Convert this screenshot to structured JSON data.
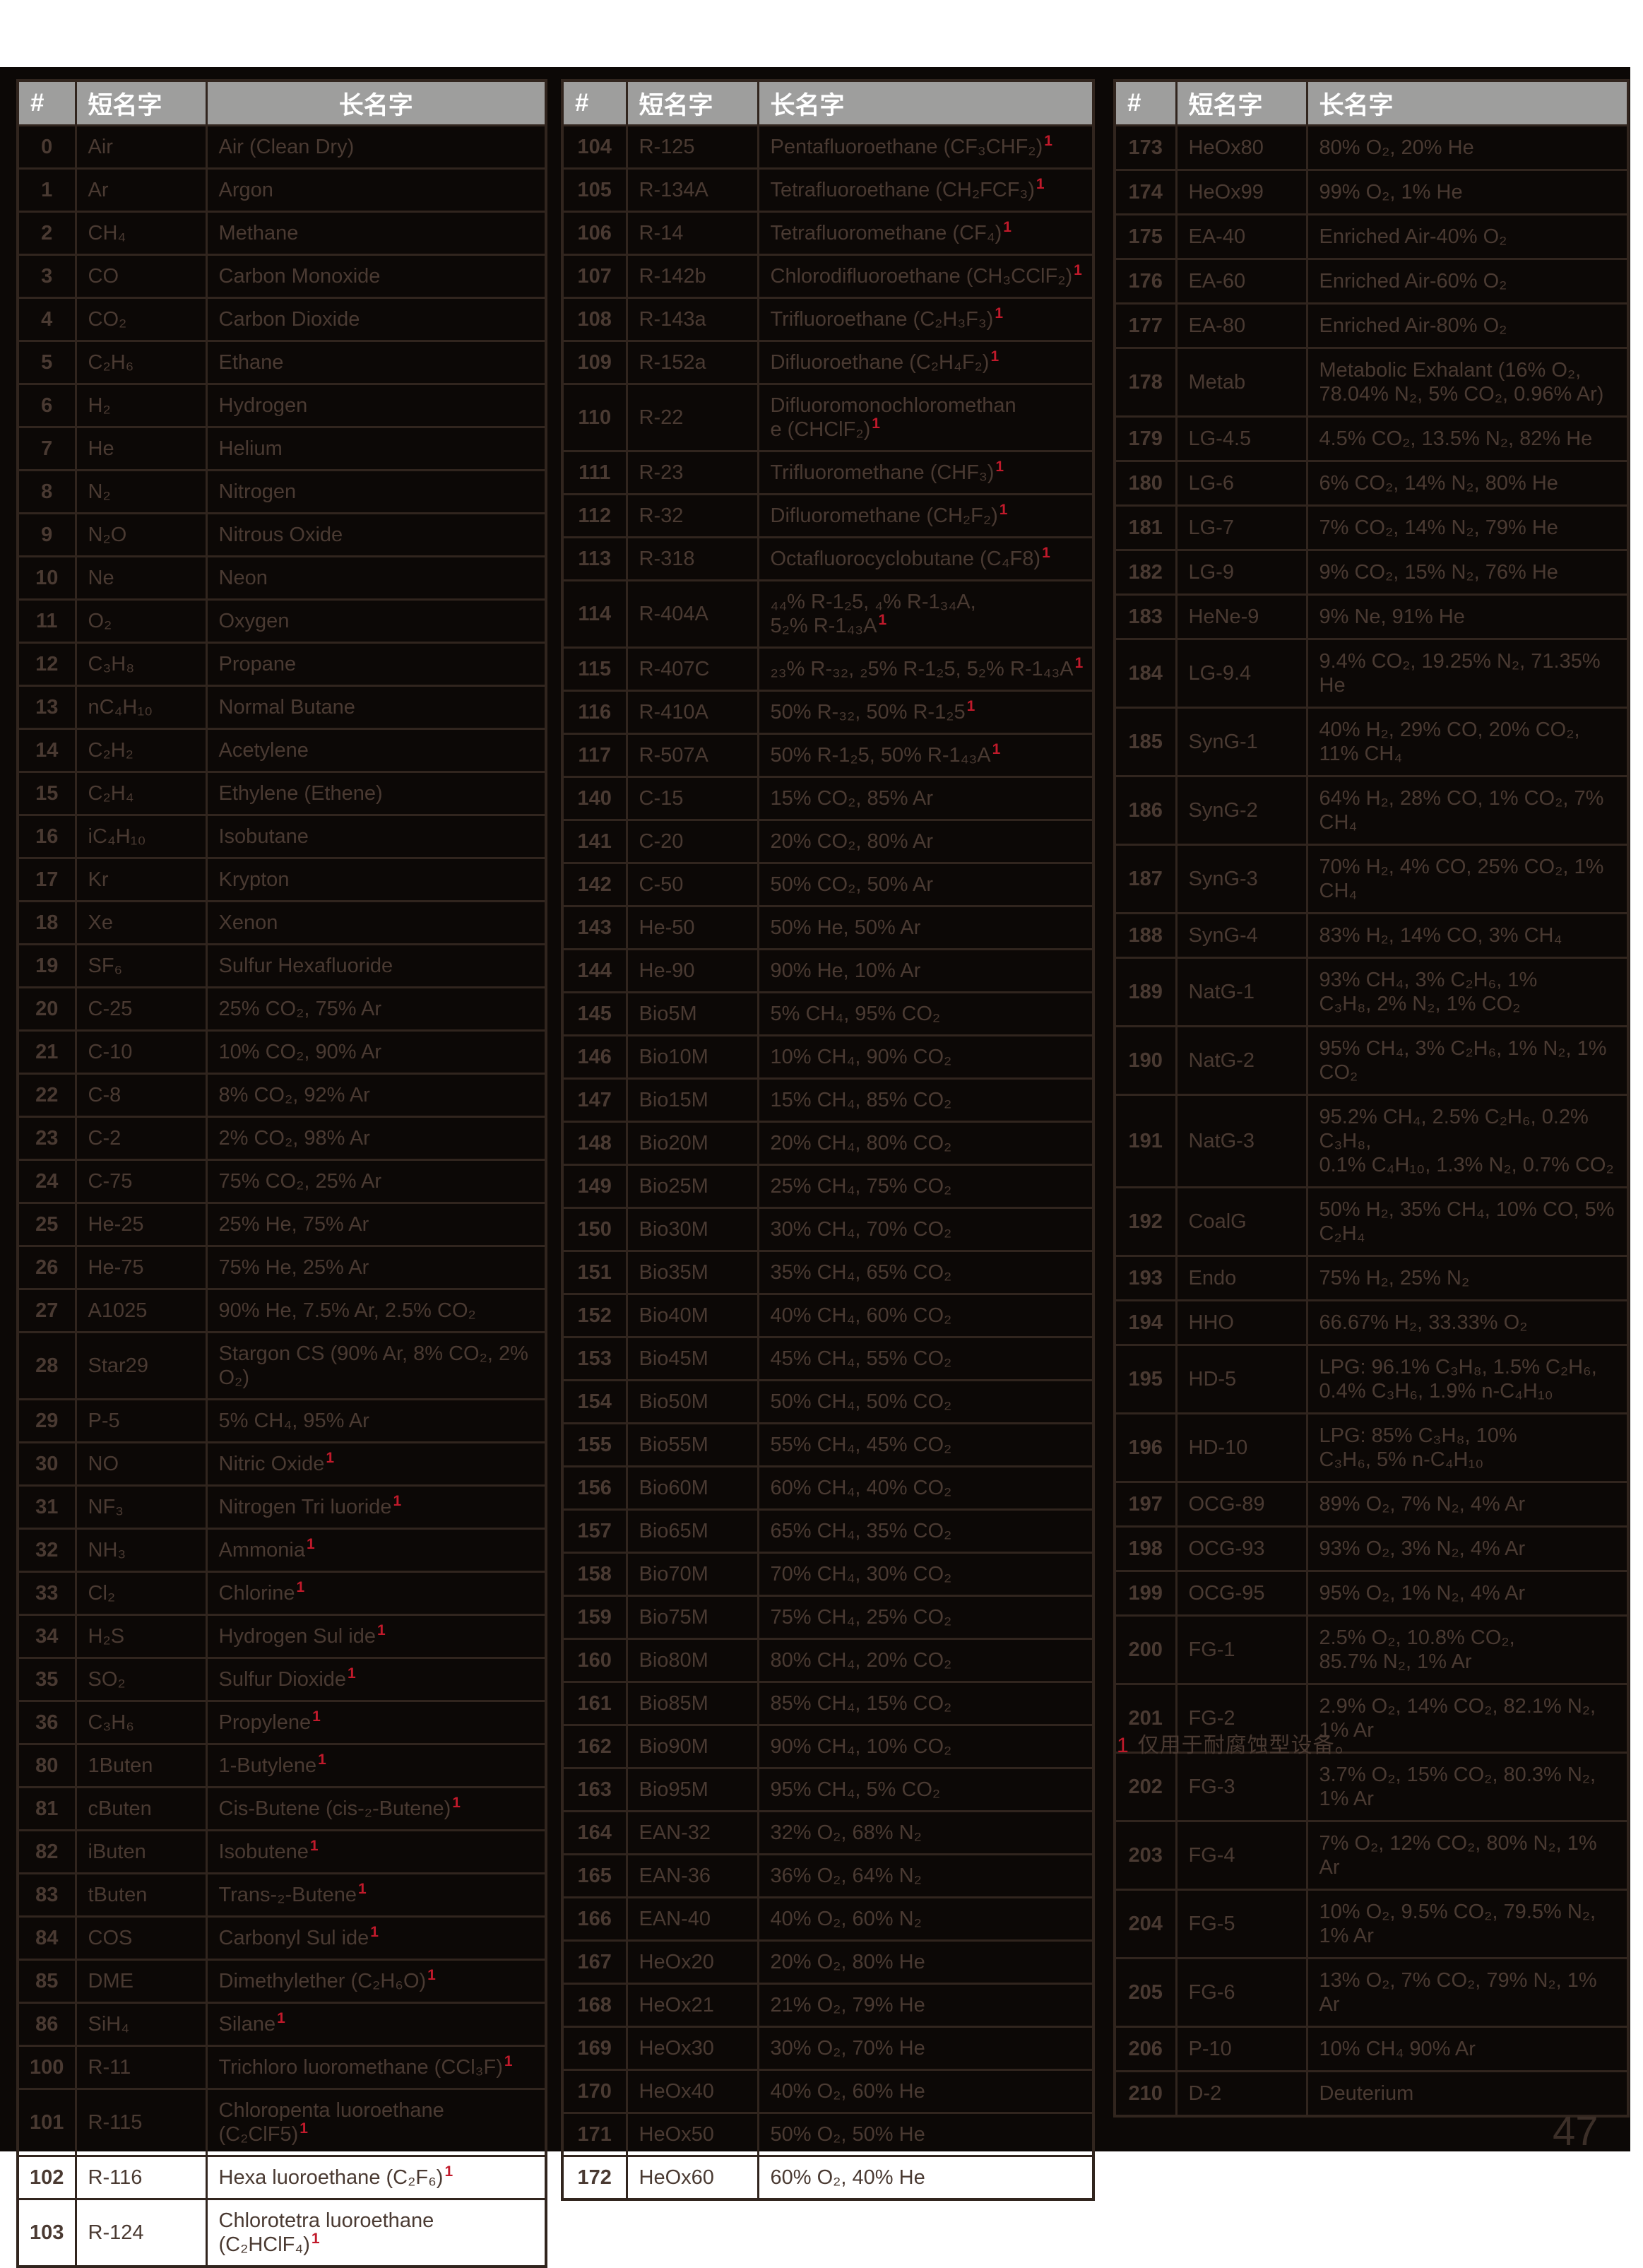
{
  "columns": {
    "num": "#",
    "short": "短名字",
    "long": "长名字"
  },
  "footnote": {
    "marker": "1",
    "text": "仅用于耐腐蚀型设备。"
  },
  "page": {
    "number": "47"
  },
  "colors": {
    "sheet_background": "#0C0806",
    "header_background": "#9E9E9D",
    "header_text": "#FFFFFF",
    "body_text": "#4A3A32",
    "table_border": "#31251E",
    "footnote_red": "#C11A2B",
    "page_number": "#3C2F28"
  },
  "tables": [
    {
      "rows": [
        {
          "num": "0",
          "short": "Air",
          "long": "Air (Clean Dry)",
          "fn": false
        },
        {
          "num": "1",
          "short": "Ar",
          "long": "Argon",
          "fn": false
        },
        {
          "num": "2",
          "short": "CH₄",
          "long": "Methane",
          "fn": false
        },
        {
          "num": "3",
          "short": "CO",
          "long": "Carbon Monoxide",
          "fn": false
        },
        {
          "num": "4",
          "short": "CO₂",
          "long": "Carbon Dioxide",
          "fn": false
        },
        {
          "num": "5",
          "short": "C₂H₆",
          "long": "Ethane",
          "fn": false
        },
        {
          "num": "6",
          "short": "H₂",
          "long": "Hydrogen",
          "fn": false
        },
        {
          "num": "7",
          "short": "He",
          "long": "Helium",
          "fn": false
        },
        {
          "num": "8",
          "short": "N₂",
          "long": "Nitrogen",
          "fn": false
        },
        {
          "num": "9",
          "short": "N₂O",
          "long": "Nitrous Oxide",
          "fn": false
        },
        {
          "num": "10",
          "short": "Ne",
          "long": "Neon",
          "fn": false
        },
        {
          "num": "11",
          "short": "O₂",
          "long": "Oxygen",
          "fn": false
        },
        {
          "num": "12",
          "short": "C₃H₈",
          "long": "Propane",
          "fn": false
        },
        {
          "num": "13",
          "short": "nC₄H₁₀",
          "long": "Normal Butane",
          "fn": false
        },
        {
          "num": "14",
          "short": "C₂H₂",
          "long": "Acetylene",
          "fn": false
        },
        {
          "num": "15",
          "short": "C₂H₄",
          "long": "Ethylene (Ethene)",
          "fn": false
        },
        {
          "num": "16",
          "short": "iC₄H₁₀",
          "long": "Isobutane",
          "fn": false
        },
        {
          "num": "17",
          "short": "Kr",
          "long": "Krypton",
          "fn": false
        },
        {
          "num": "18",
          "short": "Xe",
          "long": "Xenon",
          "fn": false
        },
        {
          "num": "19",
          "short": "SF₆",
          "long": "Sulfur Hexafluoride",
          "fn": false
        },
        {
          "num": "20",
          "short": "C-25",
          "long": "25% CO₂, 75% Ar",
          "fn": false
        },
        {
          "num": "21",
          "short": "C-10",
          "long": "10% CO₂, 90% Ar",
          "fn": false
        },
        {
          "num": "22",
          "short": "C-8",
          "long": "8% CO₂, 92% Ar",
          "fn": false
        },
        {
          "num": "23",
          "short": "C-2",
          "long": "2% CO₂, 98% Ar",
          "fn": false
        },
        {
          "num": "24",
          "short": "C-75",
          "long": "75% CO₂, 25% Ar",
          "fn": false
        },
        {
          "num": "25",
          "short": "He-25",
          "long": "25% He, 75% Ar",
          "fn": false
        },
        {
          "num": "26",
          "short": "He-75",
          "long": "75% He, 25% Ar",
          "fn": false
        },
        {
          "num": "27",
          "short": "A1025",
          "long": "90% He, 7.5% Ar, 2.5% CO₂",
          "fn": false
        },
        {
          "num": "28",
          "short": "Star29",
          "long": "Stargon CS (90% Ar, 8% CO₂, 2% O₂)",
          "fn": false
        },
        {
          "num": "29",
          "short": "P-5",
          "long": "5% CH₄, 95% Ar",
          "fn": false
        },
        {
          "num": "30",
          "short": "NO",
          "long": "Nitric Oxide",
          "fn": true
        },
        {
          "num": "31",
          "short": "NF₃",
          "long": "Nitrogen Tri luoride",
          "fn": true
        },
        {
          "num": "32",
          "short": "NH₃",
          "long": "Ammonia",
          "fn": true
        },
        {
          "num": "33",
          "short": "Cl₂",
          "long": "Chlorine",
          "fn": true
        },
        {
          "num": "34",
          "short": "H₂S",
          "long": "Hydrogen Sul ide",
          "fn": true
        },
        {
          "num": "35",
          "short": "SO₂",
          "long": "Sulfur Dioxide",
          "fn": true
        },
        {
          "num": "36",
          "short": "C₃H₆",
          "long": "Propylene",
          "fn": true
        },
        {
          "num": "80",
          "short": "1Buten",
          "long": "1-Butylene",
          "fn": true
        },
        {
          "num": "81",
          "short": "cButen",
          "long": "Cis-Butene (cis-₂-Butene)",
          "fn": true
        },
        {
          "num": "82",
          "short": "iButen",
          "long": "Isobutene",
          "fn": true
        },
        {
          "num": "83",
          "short": "tButen",
          "long": "Trans-₂-Butene",
          "fn": true
        },
        {
          "num": "84",
          "short": "COS",
          "long": "Carbonyl Sul ide",
          "fn": true
        },
        {
          "num": "85",
          "short": "DME",
          "long": "Dimethylether (C₂H₆O)",
          "fn": true
        },
        {
          "num": "86",
          "short": "SiH₄",
          "long": "Silane",
          "fn": true
        },
        {
          "num": "100",
          "short": "R-11",
          "long": "Trichloro luoromethane (CCl₃F)",
          "fn": true
        },
        {
          "num": "101",
          "short": "R-115",
          "long": "Chloropenta luoroethane (C₂ClF5)",
          "fn": true
        },
        {
          "num": "102",
          "short": "R-116",
          "long": "Hexa luoroethane (C₂F₆)",
          "fn": true
        },
        {
          "num": "103",
          "short": "R-124",
          "long": "Chlorotetra luoroethane (C₂HClF₄)",
          "fn": true
        }
      ]
    },
    {
      "rows": [
        {
          "num": "104",
          "short": "R-125",
          "long": "Pentafluoroethane (CF₃CHF₂)",
          "fn": true
        },
        {
          "num": "105",
          "short": "R-134A",
          "long": "Tetrafluoroethane (CH₂FCF₃)",
          "fn": true
        },
        {
          "num": "106",
          "short": "R-14",
          "long": "Tetrafluoromethane (CF₄)",
          "fn": true
        },
        {
          "num": "107",
          "short": "R-142b",
          "long": "Chlorodifluoroethane (CH₃CClF₂)",
          "fn": true
        },
        {
          "num": "108",
          "short": "R-143a",
          "long": "Trifluoroethane (C₂H₃F₃)",
          "fn": true
        },
        {
          "num": "109",
          "short": "R-152a",
          "long": "Difluoroethane (C₂H₄F₂)",
          "fn": true
        },
        {
          "num": "110",
          "short": "R-22",
          "long": "Difluoromonochloromethan\ne (CHClF₂)",
          "fn": true
        },
        {
          "num": "111",
          "short": "R-23",
          "long": "Trifluoromethane (CHF₃)",
          "fn": true
        },
        {
          "num": "112",
          "short": "R-32",
          "long": "Difluoromethane (CH₂F₂)",
          "fn": true
        },
        {
          "num": "113",
          "short": "R-318",
          "long": "Octafluorocyclobutane (C₄F8)",
          "fn": true
        },
        {
          "num": "114",
          "short": "R-404A",
          "long": "₄₄% R-1₂5, ₄% R-1₃₄A,\n5₂% R-1₄₃A",
          "fn": true
        },
        {
          "num": "115",
          "short": "R-407C",
          "long": "₂₃% R-₃₂, ₂5% R-1₂5, 5₂% R-1₄₃A",
          "fn": true
        },
        {
          "num": "116",
          "short": "R-410A",
          "long": "50% R-₃₂, 50% R-1₂5",
          "fn": true
        },
        {
          "num": "117",
          "short": "R-507A",
          "long": "50% R-1₂5, 50% R-1₄₃A",
          "fn": true
        },
        {
          "num": "140",
          "short": "C-15",
          "long": "15% CO₂, 85% Ar",
          "fn": false
        },
        {
          "num": "141",
          "short": "C-20",
          "long": "20% CO₂, 80% Ar",
          "fn": false
        },
        {
          "num": "142",
          "short": "C-50",
          "long": "50% CO₂, 50% Ar",
          "fn": false
        },
        {
          "num": "143",
          "short": "He-50",
          "long": "50% He, 50% Ar",
          "fn": false
        },
        {
          "num": "144",
          "short": "He-90",
          "long": "90% He, 10% Ar",
          "fn": false
        },
        {
          "num": "145",
          "short": "Bio5M",
          "long": "5% CH₄, 95% CO₂",
          "fn": false
        },
        {
          "num": "146",
          "short": "Bio10M",
          "long": "10% CH₄, 90% CO₂",
          "fn": false
        },
        {
          "num": "147",
          "short": "Bio15M",
          "long": "15% CH₄, 85% CO₂",
          "fn": false
        },
        {
          "num": "148",
          "short": "Bio20M",
          "long": "20% CH₄, 80% CO₂",
          "fn": false
        },
        {
          "num": "149",
          "short": "Bio25M",
          "long": "25% CH₄, 75% CO₂",
          "fn": false
        },
        {
          "num": "150",
          "short": "Bio30M",
          "long": "30% CH₄, 70% CO₂",
          "fn": false
        },
        {
          "num": "151",
          "short": "Bio35M",
          "long": "35% CH₄, 65% CO₂",
          "fn": false
        },
        {
          "num": "152",
          "short": "Bio40M",
          "long": "40% CH₄, 60% CO₂",
          "fn": false
        },
        {
          "num": "153",
          "short": "Bio45M",
          "long": "45% CH₄, 55% CO₂",
          "fn": false
        },
        {
          "num": "154",
          "short": "Bio50M",
          "long": "50% CH₄, 50% CO₂",
          "fn": false
        },
        {
          "num": "155",
          "short": "Bio55M",
          "long": "55% CH₄, 45% CO₂",
          "fn": false
        },
        {
          "num": "156",
          "short": "Bio60M",
          "long": "60% CH₄, 40% CO₂",
          "fn": false
        },
        {
          "num": "157",
          "short": "Bio65M",
          "long": "65% CH₄, 35% CO₂",
          "fn": false
        },
        {
          "num": "158",
          "short": "Bio70M",
          "long": "70% CH₄, 30% CO₂",
          "fn": false
        },
        {
          "num": "159",
          "short": "Bio75M",
          "long": "75% CH₄, 25% CO₂",
          "fn": false
        },
        {
          "num": "160",
          "short": "Bio80M",
          "long": "80% CH₄, 20% CO₂",
          "fn": false
        },
        {
          "num": "161",
          "short": "Bio85M",
          "long": "85% CH₄, 15% CO₂",
          "fn": false
        },
        {
          "num": "162",
          "short": "Bio90M",
          "long": "90% CH₄, 10% CO₂",
          "fn": false
        },
        {
          "num": "163",
          "short": "Bio95M",
          "long": "95% CH₄, 5% CO₂",
          "fn": false
        },
        {
          "num": "164",
          "short": "EAN-32",
          "long": "32% O₂, 68% N₂",
          "fn": false
        },
        {
          "num": "165",
          "short": "EAN-36",
          "long": "36% O₂, 64% N₂",
          "fn": false
        },
        {
          "num": "166",
          "short": "EAN-40",
          "long": "40% O₂, 60% N₂",
          "fn": false
        },
        {
          "num": "167",
          "short": "HeOx20",
          "long": "20% O₂, 80% He",
          "fn": false
        },
        {
          "num": "168",
          "short": "HeOx21",
          "long": "21% O₂, 79% He",
          "fn": false
        },
        {
          "num": "169",
          "short": "HeOx30",
          "long": "30% O₂, 70% He",
          "fn": false
        },
        {
          "num": "170",
          "short": "HeOx40",
          "long": "40% O₂, 60% He",
          "fn": false
        },
        {
          "num": "171",
          "short": "HeOx50",
          "long": "50% O₂, 50% He",
          "fn": false
        },
        {
          "num": "172",
          "short": "HeOx60",
          "long": "60% O₂, 40% He",
          "fn": false
        }
      ]
    },
    {
      "rows": [
        {
          "num": "173",
          "short": "HeOx80",
          "long": "80% O₂, 20% He",
          "fn": false
        },
        {
          "num": "174",
          "short": "HeOx99",
          "long": "99% O₂, 1% He",
          "fn": false
        },
        {
          "num": "175",
          "short": "EA-40",
          "long": "Enriched Air-40% O₂",
          "fn": false
        },
        {
          "num": "176",
          "short": "EA-60",
          "long": "Enriched Air-60% O₂",
          "fn": false
        },
        {
          "num": "177",
          "short": "EA-80",
          "long": "Enriched Air-80% O₂",
          "fn": false
        },
        {
          "num": "178",
          "short": "Metab",
          "long": "Metabolic Exhalant (16% O₂,\n78.04% N₂, 5% CO₂, 0.96% Ar)",
          "fn": false
        },
        {
          "num": "179",
          "short": "LG-4.5",
          "long": "4.5% CO₂, 13.5% N₂, 82% He",
          "fn": false
        },
        {
          "num": "180",
          "short": "LG-6",
          "long": "6% CO₂, 14% N₂, 80% He",
          "fn": false
        },
        {
          "num": "181",
          "short": "LG-7",
          "long": "7% CO₂, 14% N₂, 79% He",
          "fn": false
        },
        {
          "num": "182",
          "short": "LG-9",
          "long": "9% CO₂, 15% N₂, 76% He",
          "fn": false
        },
        {
          "num": "183",
          "short": "HeNe-9",
          "long": "9% Ne, 91% He",
          "fn": false
        },
        {
          "num": "184",
          "short": "LG-9.4",
          "long": "9.4% CO₂, 19.25% N₂, 71.35% He",
          "fn": false
        },
        {
          "num": "185",
          "short": "SynG-1",
          "long": "40% H₂, 29% CO, 20% CO₂, 11% CH₄",
          "fn": false
        },
        {
          "num": "186",
          "short": "SynG-2",
          "long": "64% H₂, 28% CO, 1% CO₂, 7% CH₄",
          "fn": false
        },
        {
          "num": "187",
          "short": "SynG-3",
          "long": "70% H₂, 4% CO, 25% CO₂, 1% CH₄",
          "fn": false
        },
        {
          "num": "188",
          "short": "SynG-4",
          "long": "83% H₂, 14% CO, 3% CH₄",
          "fn": false
        },
        {
          "num": "189",
          "short": "NatG-1",
          "long": "93% CH₄, 3% C₂H₆, 1%\nC₃H₈, 2% N₂, 1% CO₂",
          "fn": false
        },
        {
          "num": "190",
          "short": "NatG-2",
          "long": "95% CH₄, 3% C₂H₆, 1% N₂, 1% CO₂",
          "fn": false
        },
        {
          "num": "191",
          "short": "NatG-3",
          "long": "95.2% CH₄, 2.5% C₂H₆, 0.2% C₃H₈,\n0.1% C₄H₁₀, 1.3% N₂, 0.7% CO₂",
          "fn": false
        },
        {
          "num": "192",
          "short": "CoalG",
          "long": "50% H₂, 35% CH₄, 10% CO, 5% C₂H₄",
          "fn": false
        },
        {
          "num": "193",
          "short": "Endo",
          "long": "75% H₂, 25% N₂",
          "fn": false
        },
        {
          "num": "194",
          "short": "HHO",
          "long": "66.67% H₂, 33.33% O₂",
          "fn": false
        },
        {
          "num": "195",
          "short": "HD-5",
          "long": "LPG: 96.1% C₃H₈, 1.5% C₂H₆,\n0.4% C₃H₆, 1.9% n-C₄H₁₀",
          "fn": false
        },
        {
          "num": "196",
          "short": "HD-10",
          "long": "LPG: 85% C₃H₈, 10%\nC₃H₆, 5% n-C₄H₁₀",
          "fn": false
        },
        {
          "num": "197",
          "short": "OCG-89",
          "long": "89% O₂, 7% N₂, 4% Ar",
          "fn": false
        },
        {
          "num": "198",
          "short": "OCG-93",
          "long": "93% O₂, 3% N₂, 4% Ar",
          "fn": false
        },
        {
          "num": "199",
          "short": "OCG-95",
          "long": "95% O₂, 1% N₂, 4% Ar",
          "fn": false
        },
        {
          "num": "200",
          "short": "FG-1",
          "long": "2.5% O₂, 10.8% CO₂,\n85.7% N₂, 1% Ar",
          "fn": false
        },
        {
          "num": "201",
          "short": "FG-2",
          "long": "2.9% O₂, 14% CO₂, 82.1% N₂, 1% Ar",
          "fn": false
        },
        {
          "num": "202",
          "short": "FG-3",
          "long": "3.7% O₂, 15% CO₂, 80.3% N₂, 1% Ar",
          "fn": false
        },
        {
          "num": "203",
          "short": "FG-4",
          "long": "7% O₂, 12% CO₂, 80% N₂, 1% Ar",
          "fn": false
        },
        {
          "num": "204",
          "short": "FG-5",
          "long": "10% O₂, 9.5% CO₂, 79.5% N₂, 1% Ar",
          "fn": false
        },
        {
          "num": "205",
          "short": "FG-6",
          "long": "13% O₂, 7% CO₂, 79% N₂, 1% Ar",
          "fn": false
        },
        {
          "num": "206",
          "short": "P-10",
          "long": "10% CH₄ 90% Ar",
          "fn": false
        },
        {
          "num": "210",
          "short": "D-2",
          "long": "Deuterium",
          "fn": false
        }
      ]
    }
  ]
}
